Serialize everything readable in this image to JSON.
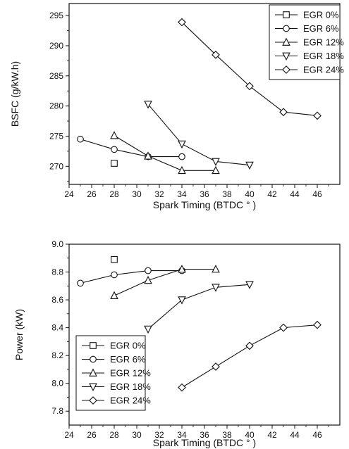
{
  "colors": {
    "ink": "#111111",
    "background": "#ffffff"
  },
  "chart_data": [
    {
      "type": "line",
      "xlabel": "Spark Timing (BTDC ° )",
      "ylabel": "BSFC (g/kW.h)",
      "xlim": [
        24,
        48
      ],
      "ylim": [
        267,
        297
      ],
      "xticks": [
        24,
        26,
        28,
        30,
        32,
        34,
        36,
        38,
        40,
        42,
        44,
        46
      ],
      "yticks": [
        270,
        275,
        280,
        285,
        290,
        295
      ],
      "grid": false,
      "legend_position": "top-right",
      "series": [
        {
          "name": "EGR 0%",
          "marker": "square",
          "x": [
            28
          ],
          "y": [
            270.5
          ]
        },
        {
          "name": "EGR 6%",
          "marker": "circle",
          "x": [
            25,
            28,
            31,
            34
          ],
          "y": [
            274.5,
            272.8,
            271.6,
            271.6
          ]
        },
        {
          "name": "EGR 12%",
          "marker": "triangle-up",
          "x": [
            28,
            31,
            34,
            37
          ],
          "y": [
            275.1,
            271.7,
            269.3,
            269.3
          ]
        },
        {
          "name": "EGR 18%",
          "marker": "triangle-down",
          "x": [
            31,
            34,
            37,
            40
          ],
          "y": [
            280.3,
            273.7,
            270.8,
            270.2
          ]
        },
        {
          "name": "EGR 24%",
          "marker": "diamond",
          "x": [
            34,
            37,
            40,
            43,
            46
          ],
          "y": [
            293.9,
            288.5,
            283.3,
            279.0,
            278.4
          ]
        }
      ]
    },
    {
      "type": "line",
      "xlabel": "Spark Timing (BTDC ° )",
      "ylabel": "Power (kW)",
      "xlim": [
        24,
        48
      ],
      "ylim": [
        7.7,
        9.0
      ],
      "xticks": [
        24,
        26,
        28,
        30,
        32,
        34,
        36,
        38,
        40,
        42,
        44,
        46
      ],
      "yticks": [
        7.8,
        8.0,
        8.2,
        8.4,
        8.6,
        8.8,
        9.0
      ],
      "grid": false,
      "legend_position": "bottom-left",
      "series": [
        {
          "name": "EGR 0%",
          "marker": "square",
          "x": [
            28
          ],
          "y": [
            8.89
          ]
        },
        {
          "name": "EGR 6%",
          "marker": "circle",
          "x": [
            25,
            28,
            31,
            34
          ],
          "y": [
            8.72,
            8.78,
            8.81,
            8.81
          ]
        },
        {
          "name": "EGR 12%",
          "marker": "triangle-up",
          "x": [
            28,
            31,
            34,
            37
          ],
          "y": [
            8.63,
            8.74,
            8.82,
            8.82
          ]
        },
        {
          "name": "EGR 18%",
          "marker": "triangle-down",
          "x": [
            31,
            34,
            37,
            40
          ],
          "y": [
            8.39,
            8.6,
            8.69,
            8.71
          ]
        },
        {
          "name": "EGR 24%",
          "marker": "diamond",
          "x": [
            34,
            37,
            40,
            43,
            46
          ],
          "y": [
            7.97,
            8.12,
            8.27,
            8.4,
            8.42
          ]
        }
      ]
    }
  ]
}
